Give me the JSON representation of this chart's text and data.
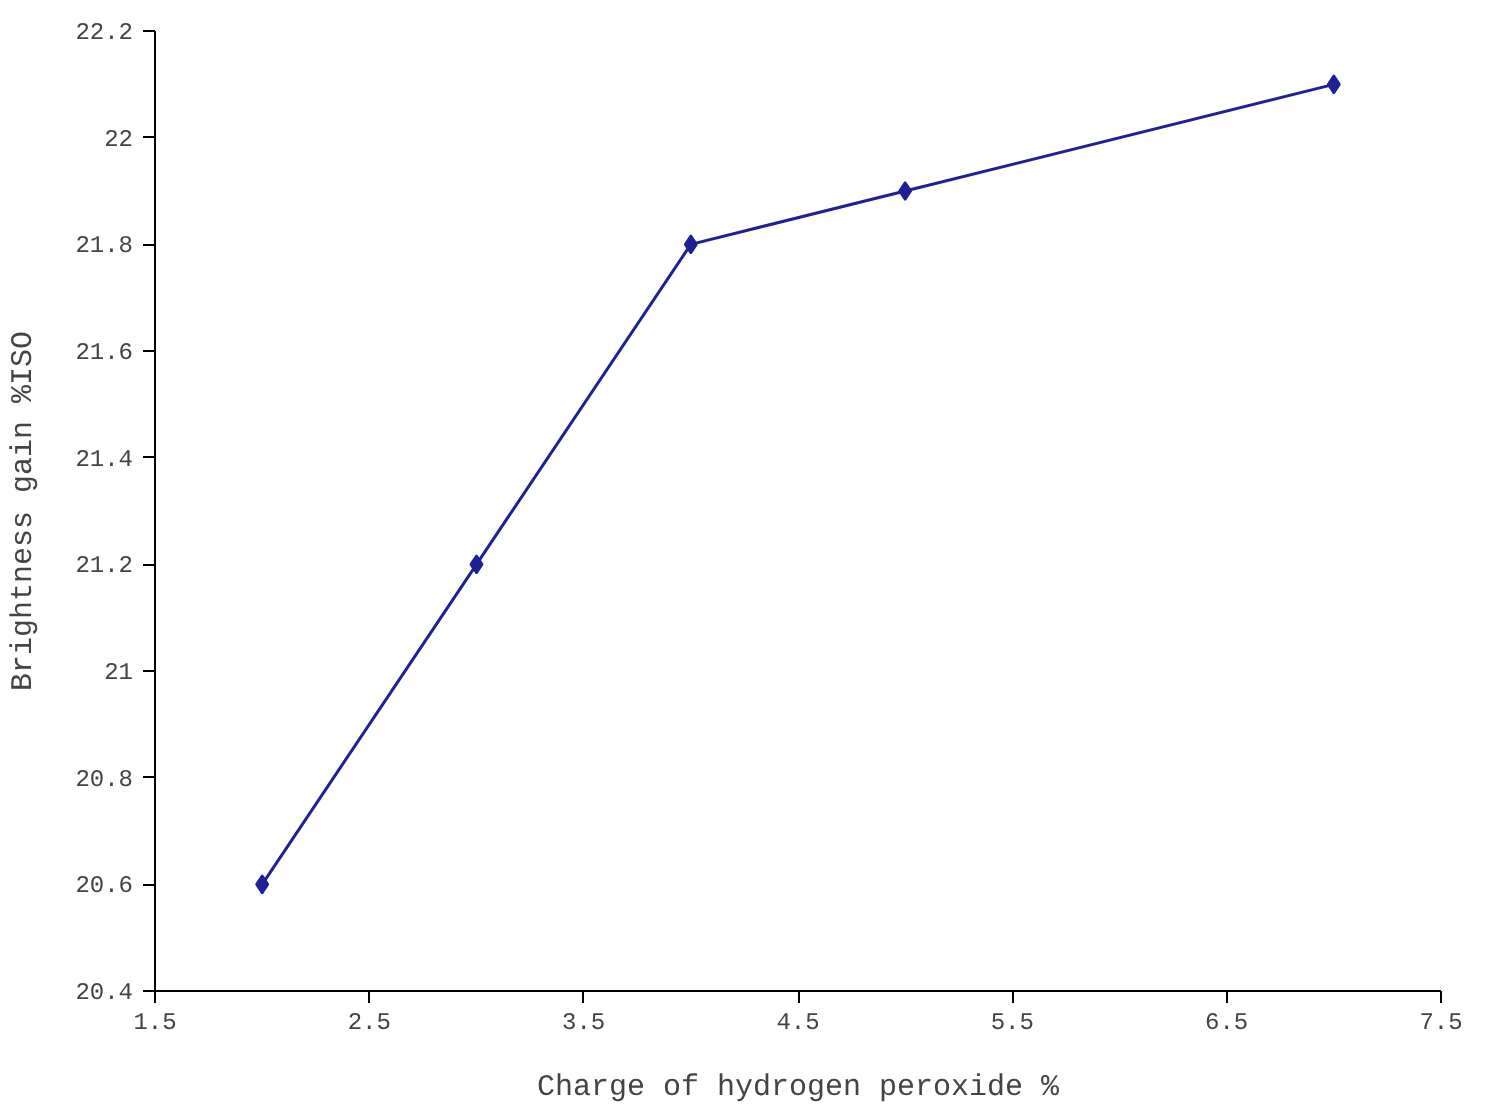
{
  "chart_data": {
    "type": "line",
    "xlabel": "Charge of hydrogen peroxide %",
    "ylabel": "Brightness gain %ISO",
    "x": [
      2,
      3,
      4,
      5,
      7
    ],
    "series": [
      {
        "color": "#1f1f96",
        "values": [
          20.6,
          21.2,
          21.8,
          21.9,
          22.1
        ]
      }
    ],
    "xlim": [
      1.5,
      7.5
    ],
    "xticks": [
      1.5,
      2.5,
      3.5,
      4.5,
      5.5,
      6.5,
      7.5
    ],
    "ylim": [
      20.4,
      22.2
    ],
    "yticks": [
      20.4,
      20.6,
      20.8,
      21,
      21.2,
      21.4,
      21.6,
      21.8,
      22,
      22.2
    ],
    "marker": "diamond",
    "line_style": "solid",
    "grid": false
  }
}
